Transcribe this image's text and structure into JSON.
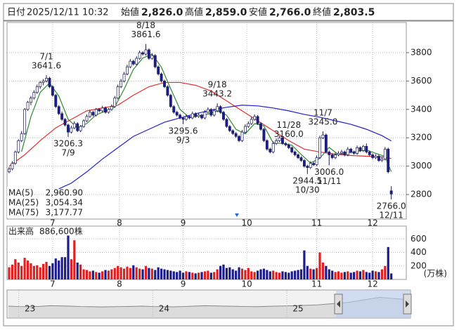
{
  "chart_data": {
    "type": "candlestick",
    "quote": {
      "date_label": "日付",
      "datetime": "2025/12/11 10:32",
      "fields": [
        {
          "name": "始値",
          "value": 2826,
          "label": "2,826.0",
          "color": "#000000"
        },
        {
          "name": "高値",
          "value": 2859,
          "label": "2,859.0",
          "color": "#e00000"
        },
        {
          "name": "安値",
          "value": 2766,
          "label": "2,766.0",
          "color": "#009a00"
        },
        {
          "name": "終値",
          "value": 2803.5,
          "label": "2,803.5",
          "color": "#000000"
        }
      ]
    },
    "ylim": [
      2627,
      4013
    ],
    "yticks": [
      2800,
      3000,
      3200,
      3400,
      3600,
      3800
    ],
    "xticks": [
      {
        "value": 14,
        "label": "7"
      },
      {
        "value": 35.5,
        "label": "8"
      },
      {
        "value": 56,
        "label": "9"
      },
      {
        "value": 76.5,
        "label": "10"
      },
      {
        "value": 99,
        "label": "11"
      },
      {
        "value": 117,
        "label": "12"
      }
    ],
    "grid": true,
    "up_color": "#ffffff",
    "down_color": "#1c1c8c",
    "edge_color": "#1c1c5c",
    "candles": [
      [
        2960,
        2995,
        2950,
        2980
      ],
      [
        2980,
        3035,
        2970,
        3020
      ],
      [
        3020,
        3110,
        3010,
        3100
      ],
      [
        3100,
        3190,
        3090,
        3180
      ],
      [
        3180,
        3248,
        3170,
        3230
      ],
      [
        3230,
        3410,
        3220,
        3400
      ],
      [
        3400,
        3460,
        3390,
        3450
      ],
      [
        3450,
        3495,
        3430,
        3480
      ],
      [
        3480,
        3535,
        3470,
        3520
      ],
      [
        3520,
        3575,
        3510,
        3560
      ],
      [
        3560,
        3600,
        3545,
        3590
      ],
      [
        3590,
        3615,
        3570,
        3600
      ],
      [
        3600,
        3641.6,
        3590,
        3620
      ],
      [
        3620,
        3630,
        3550,
        3560
      ],
      [
        3560,
        3570,
        3490,
        3500
      ],
      [
        3500,
        3510,
        3410,
        3420
      ],
      [
        3420,
        3430,
        3360,
        3370
      ],
      [
        3370,
        3385,
        3320,
        3330
      ],
      [
        3330,
        3340,
        3280,
        3290
      ],
      [
        3290,
        3300,
        3206.3,
        3240
      ],
      [
        3240,
        3285,
        3230,
        3270
      ],
      [
        3270,
        3315,
        3260,
        3300
      ],
      [
        3300,
        3310,
        3240,
        3250
      ],
      [
        3250,
        3290,
        3240,
        3280
      ],
      [
        3280,
        3330,
        3270,
        3320
      ],
      [
        3320,
        3365,
        3310,
        3350
      ],
      [
        3350,
        3395,
        3340,
        3380
      ],
      [
        3380,
        3390,
        3350,
        3360
      ],
      [
        3360,
        3410,
        3350,
        3400
      ],
      [
        3400,
        3410,
        3380,
        3390
      ],
      [
        3390,
        3425,
        3380,
        3410
      ],
      [
        3410,
        3420,
        3370,
        3380
      ],
      [
        3380,
        3410,
        3370,
        3400
      ],
      [
        3400,
        3435,
        3390,
        3420
      ],
      [
        3420,
        3495,
        3410,
        3480
      ],
      [
        3480,
        3575,
        3470,
        3560
      ],
      [
        3560,
        3615,
        3550,
        3600
      ],
      [
        3600,
        3665,
        3590,
        3650
      ],
      [
        3650,
        3715,
        3640,
        3700
      ],
      [
        3700,
        3755,
        3690,
        3740
      ],
      [
        3740,
        3750,
        3710,
        3720
      ],
      [
        3720,
        3775,
        3710,
        3760
      ],
      [
        3760,
        3815,
        3750,
        3800
      ],
      [
        3800,
        3810,
        3780,
        3790
      ],
      [
        3790,
        3861.6,
        3780,
        3820
      ],
      [
        3820,
        3830,
        3750,
        3760
      ],
      [
        3760,
        3795,
        3750,
        3780
      ],
      [
        3780,
        3790,
        3690,
        3700
      ],
      [
        3700,
        3710,
        3640,
        3650
      ],
      [
        3650,
        3660,
        3590,
        3600
      ],
      [
        3600,
        3610,
        3550,
        3560
      ],
      [
        3560,
        3570,
        3490,
        3500
      ],
      [
        3500,
        3510,
        3410,
        3420
      ],
      [
        3420,
        3430,
        3370,
        3380
      ],
      [
        3380,
        3390,
        3350,
        3360
      ],
      [
        3360,
        3370,
        3330,
        3340
      ],
      [
        3340,
        3345,
        3295.6,
        3330
      ],
      [
        3330,
        3365,
        3320,
        3350
      ],
      [
        3350,
        3360,
        3330,
        3340
      ],
      [
        3340,
        3385,
        3330,
        3370
      ],
      [
        3370,
        3380,
        3340,
        3350
      ],
      [
        3350,
        3375,
        3340,
        3360
      ],
      [
        3360,
        3370,
        3330,
        3340
      ],
      [
        3340,
        3395,
        3330,
        3380
      ],
      [
        3380,
        3415,
        3370,
        3400
      ],
      [
        3400,
        3410,
        3350,
        3360
      ],
      [
        3360,
        3405,
        3350,
        3390
      ],
      [
        3390,
        3443.2,
        3380,
        3420
      ],
      [
        3420,
        3430,
        3370,
        3380
      ],
      [
        3380,
        3390,
        3320,
        3330
      ],
      [
        3330,
        3340,
        3270,
        3280
      ],
      [
        3280,
        3290,
        3240,
        3250
      ],
      [
        3250,
        3260,
        3220,
        3230
      ],
      [
        3230,
        3240,
        3200,
        3210
      ],
      [
        3210,
        3220,
        3170,
        3180
      ],
      [
        3180,
        3255,
        3170,
        3240
      ],
      [
        3240,
        3295,
        3230,
        3280
      ],
      [
        3280,
        3315,
        3270,
        3300
      ],
      [
        3300,
        3345,
        3290,
        3330
      ],
      [
        3330,
        3365,
        3320,
        3350
      ],
      [
        3350,
        3360,
        3290,
        3300
      ],
      [
        3300,
        3310,
        3250,
        3260
      ],
      [
        3260,
        3270,
        3170,
        3180
      ],
      [
        3180,
        3190,
        3110,
        3120
      ],
      [
        3120,
        3130,
        3090,
        3100
      ],
      [
        3100,
        3175,
        3090,
        3160
      ],
      [
        3160,
        3195,
        3150,
        3180
      ],
      [
        3180,
        3215,
        3170,
        3200
      ],
      [
        3200,
        3210,
        3150,
        3160
      ],
      [
        3160,
        3170,
        3140,
        3150
      ],
      [
        3150,
        3160,
        3120,
        3130
      ],
      [
        3130,
        3140,
        3090,
        3100
      ],
      [
        3100,
        3110,
        3070,
        3080
      ],
      [
        3080,
        3090,
        3050,
        3060
      ],
      [
        3060,
        3070,
        3030,
        3040
      ],
      [
        3040,
        3050,
        2990,
        3000
      ],
      [
        3000,
        3010,
        2944.5,
        2990
      ],
      [
        2990,
        3035,
        2980,
        3020
      ],
      [
        3020,
        3030,
        3000,
        3010
      ],
      [
        3010,
        3075,
        3000,
        3060
      ],
      [
        3060,
        3215,
        3050,
        3200
      ],
      [
        3200,
        3245,
        3190,
        3220
      ],
      [
        3220,
        3230,
        3090,
        3100
      ],
      [
        3100,
        3110,
        3006,
        3080
      ],
      [
        3080,
        3090,
        3050,
        3060
      ],
      [
        3060,
        3095,
        3050,
        3080
      ],
      [
        3080,
        3105,
        3070,
        3090
      ],
      [
        3090,
        3115,
        3080,
        3100
      ],
      [
        3100,
        3110,
        3070,
        3080
      ],
      [
        3080,
        3135,
        3070,
        3120
      ],
      [
        3120,
        3130,
        3090,
        3100
      ],
      [
        3100,
        3110,
        3080,
        3090
      ],
      [
        3090,
        3145,
        3080,
        3130
      ],
      [
        3130,
        3140,
        3100,
        3110
      ],
      [
        3110,
        3150,
        3100,
        3140
      ],
      [
        3140,
        3160,
        3090,
        3100
      ],
      [
        3100,
        3110,
        3070,
        3080
      ],
      [
        3080,
        3090,
        3050,
        3060
      ],
      [
        3060,
        3085,
        3050,
        3070
      ],
      [
        3070,
        3080,
        3030,
        3040
      ],
      [
        3040,
        3065,
        3030,
        3050
      ],
      [
        3050,
        3135,
        3040,
        3120
      ],
      [
        3120,
        3130,
        2950,
        2960
      ],
      [
        2826,
        2859,
        2766,
        2803.5
      ]
    ],
    "annotations": [
      {
        "date": "7/1",
        "value": 3641.6,
        "label": "3641.6",
        "position": "above"
      },
      {
        "date": "7/9",
        "value": 3206.3,
        "label": "3206.3",
        "position": "below"
      },
      {
        "date": "8/18",
        "value": 3861.6,
        "label": "3861.6",
        "position": "above"
      },
      {
        "date": "9/3",
        "value": 3295.6,
        "label": "3295.6",
        "position": "below"
      },
      {
        "date": "9/18",
        "value": 3443.2,
        "label": "3443.2",
        "position": "above"
      },
      {
        "date": "10/30",
        "value": 2944.5,
        "label": "2944.5",
        "position": "below"
      },
      {
        "date": "11/7",
        "value": 3245,
        "label": "3245.0",
        "position": "above"
      },
      {
        "date": "11/11",
        "value": 3006,
        "label": "3006.0",
        "position": "below"
      },
      {
        "date": "11/28",
        "value": 3160,
        "label": "3160.0",
        "position": "above"
      },
      {
        "date": "12/11",
        "value": 2766,
        "label": "2766.0",
        "position": "below"
      }
    ],
    "moving_averages": [
      {
        "name": "MA(5)",
        "color": "#2e8b2e",
        "last": {
          "value": 2960.9,
          "label": "2,960.90"
        },
        "x": [
          4,
          7,
          10,
          13,
          16,
          19,
          22,
          25,
          28,
          31,
          34,
          37,
          40,
          43,
          46,
          49,
          52,
          55,
          58,
          61,
          64,
          67,
          70,
          73,
          76,
          79,
          82,
          85,
          88,
          91,
          94,
          97,
          100,
          103,
          106,
          109,
          112,
          115,
          118,
          121,
          123
        ],
        "values": [
          3102,
          3348,
          3520,
          3586,
          3494,
          3330,
          3270,
          3300,
          3362,
          3388,
          3418,
          3542,
          3682,
          3762,
          3790,
          3698,
          3546,
          3400,
          3344,
          3354,
          3366,
          3390,
          3360,
          3260,
          3228,
          3300,
          3284,
          3164,
          3160,
          3148,
          3082,
          3022,
          3056,
          3132,
          3082,
          3094,
          3104,
          3114,
          3090,
          3068,
          2960.9
        ]
      },
      {
        "name": "MA(25)",
        "color": "#e03030",
        "last": {
          "value": 3054.34,
          "label": "3,054.34"
        },
        "x": [
          0,
          5,
          10,
          15,
          20,
          25,
          30,
          35,
          40,
          45,
          50,
          55,
          60,
          65,
          70,
          75,
          80,
          85,
          90,
          95,
          100,
          105,
          110,
          115,
          120,
          123
        ],
        "values": [
          3000,
          3080,
          3180,
          3270,
          3330,
          3390,
          3410,
          3430,
          3500,
          3560,
          3590,
          3590,
          3570,
          3530,
          3460,
          3390,
          3320,
          3250,
          3180,
          3120,
          3100,
          3085,
          3075,
          3070,
          3065,
          3054.34
        ]
      },
      {
        "name": "MA(75)",
        "color": "#2020d0",
        "last": {
          "value": 3177.77,
          "label": "3,177.77"
        },
        "x": [
          16,
          20,
          25,
          30,
          35,
          40,
          45,
          50,
          55,
          60,
          65,
          70,
          75,
          80,
          85,
          90,
          95,
          100,
          105,
          110,
          115,
          120,
          123
        ],
        "values": [
          2840,
          2880,
          2960,
          3050,
          3130,
          3210,
          3260,
          3310,
          3340,
          3370,
          3395,
          3415,
          3430,
          3425,
          3410,
          3390,
          3365,
          3345,
          3320,
          3295,
          3260,
          3215,
          3177.77
        ]
      }
    ],
    "volume": {
      "title": "出来高",
      "last": {
        "value": 886600,
        "label": "886,600株"
      },
      "unit": "(万株)",
      "ylim": [
        0,
        790
      ],
      "yticks": [
        200,
        400,
        600
      ],
      "up_color": "#e02020",
      "down_color": "#1c1c8c",
      "values": [
        180,
        220,
        300,
        250,
        200,
        320,
        280,
        240,
        200,
        210,
        180,
        230,
        260,
        200,
        240,
        310,
        280,
        330,
        330,
        650,
        300,
        580,
        250,
        220,
        150,
        140,
        120,
        130,
        110,
        100,
        120,
        140,
        130,
        150,
        170,
        200,
        180,
        160,
        190,
        170,
        210,
        180,
        160,
        150,
        200,
        170,
        160,
        140,
        180,
        160,
        150,
        140,
        130,
        120,
        110,
        130,
        100,
        120,
        110,
        100,
        90,
        100,
        110,
        120,
        130,
        100,
        110,
        150,
        200,
        220,
        170,
        180,
        150,
        130,
        180,
        160,
        140,
        170,
        120,
        110,
        130,
        150,
        160,
        140,
        120,
        130,
        110,
        100,
        120,
        110,
        100,
        120,
        130,
        140,
        150,
        430,
        200,
        160,
        150,
        170,
        400,
        250,
        200,
        150,
        130,
        110,
        120,
        100,
        110,
        120,
        100,
        110,
        130,
        120,
        140,
        110,
        100,
        130,
        120,
        110,
        150,
        200,
        480,
        88.66
      ]
    },
    "navigator": {
      "ylim": [
        1000,
        4200
      ],
      "xticks": [
        {
          "value": 1,
          "label": "23"
        },
        {
          "value": 14,
          "label": "24"
        },
        {
          "value": 27,
          "label": "25"
        }
      ],
      "values": [
        2350,
        2300,
        2280,
        2320,
        2400,
        2380,
        2350,
        2300,
        2280,
        2250,
        2270,
        2300,
        2320,
        2350,
        2300,
        2280,
        2260,
        2300,
        2350,
        2400,
        2380,
        2350,
        2330,
        2300,
        2280,
        2320,
        2350,
        2380,
        2400,
        2450,
        2500,
        2600,
        2700,
        2800,
        3000,
        3200,
        3400,
        3300,
        3200,
        3000
      ]
    }
  }
}
